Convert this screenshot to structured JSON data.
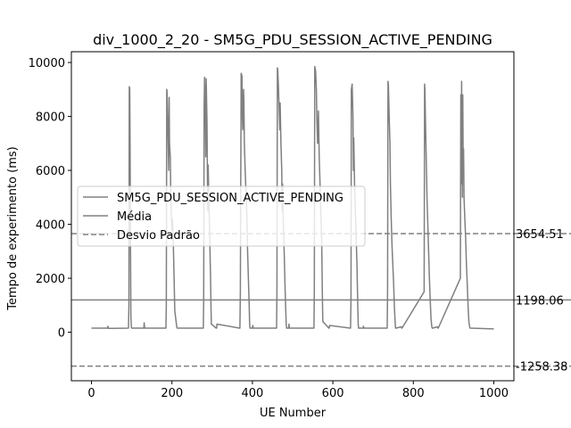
{
  "chart_data": {
    "type": "line",
    "title": "div_1000_2_20 - SM5G_PDU_SESSION_ACTIVE_PENDING",
    "xlabel": "UE Number",
    "ylabel": "Tempo de experimento (ms)",
    "xlim": [
      -50,
      1050
    ],
    "ylim": [
      -1800,
      10400
    ],
    "xticks": [
      0,
      200,
      400,
      600,
      800,
      1000
    ],
    "yticks": [
      0,
      2000,
      4000,
      6000,
      8000,
      10000
    ],
    "legend_position": "center-left",
    "grid": false,
    "series": [
      {
        "name": "SM5G_PDU_SESSION_ACTIVE_PENDING",
        "color": "#808080",
        "style": "solid",
        "x": [
          0,
          40,
          41,
          42,
          92,
          93,
          94,
          95,
          96,
          97,
          98,
          99,
          100,
          101,
          102,
          130,
          131,
          132,
          185,
          186,
          187,
          188,
          190,
          192,
          193,
          194,
          196,
          197,
          198,
          200,
          201,
          203,
          205,
          207,
          212,
          213,
          214,
          278,
          279,
          280,
          281,
          283,
          284,
          285,
          287,
          288,
          289,
          290,
          292,
          294,
          296,
          297,
          298,
          310,
          311,
          312,
          368,
          369,
          370,
          372,
          374,
          375,
          376,
          378,
          379,
          380,
          382,
          384,
          386,
          388,
          390,
          392,
          393,
          394,
          400,
          401,
          402,
          460,
          461,
          462,
          463,
          465,
          467,
          468,
          469,
          471,
          473,
          474,
          475,
          477,
          479,
          481,
          483,
          484,
          485,
          490,
          491,
          492,
          553,
          554,
          555,
          557,
          559,
          560,
          562,
          564,
          566,
          568,
          570,
          572,
          573,
          574,
          575,
          590,
          591,
          592,
          643,
          644,
          645,
          646,
          648,
          650,
          651,
          652,
          654,
          656,
          658,
          660,
          662,
          663,
          664,
          675,
          676,
          677,
          735,
          736,
          737,
          738,
          740,
          742,
          743,
          745,
          747,
          749,
          751,
          753,
          755,
          756,
          757,
          770,
          771,
          772,
          827,
          828,
          829,
          830,
          832,
          834,
          836,
          838,
          840,
          842,
          844,
          846,
          847,
          848,
          860,
          861,
          862,
          917,
          918,
          919,
          920,
          921,
          922,
          923,
          924,
          925,
          926,
          928,
          930,
          932,
          934,
          936,
          938,
          940,
          941,
          942,
          1000
        ],
        "y": [
          150,
          150,
          220,
          140,
          150,
          1000,
          9100,
          9050,
          7000,
          3000,
          600,
          200,
          150,
          150,
          150,
          150,
          350,
          150,
          150,
          1000,
          9000,
          8900,
          7500,
          6000,
          8700,
          7000,
          6500,
          5200,
          4500,
          3800,
          4200,
          3500,
          2200,
          800,
          200,
          150,
          150,
          150,
          1200,
          8400,
          9450,
          8000,
          6500,
          9400,
          7800,
          6000,
          4500,
          6200,
          4800,
          3500,
          2000,
          900,
          300,
          150,
          150,
          300,
          150,
          150,
          1500,
          9600,
          9500,
          8000,
          7500,
          9000,
          8500,
          7000,
          6000,
          5200,
          4400,
          3000,
          2000,
          1000,
          300,
          150,
          150,
          250,
          150,
          150,
          1500,
          9800,
          9750,
          9000,
          8000,
          7500,
          8500,
          7000,
          6000,
          4500,
          5500,
          4000,
          3000,
          1800,
          800,
          300,
          150,
          150,
          300,
          150,
          150,
          1500,
          9850,
          9700,
          9000,
          8000,
          7000,
          8200,
          6500,
          5500,
          4500,
          3500,
          2500,
          1200,
          400,
          150,
          150,
          250,
          150,
          150,
          1200,
          9000,
          9200,
          8000,
          6000,
          7200,
          5500,
          4500,
          3500,
          2500,
          1000,
          300,
          150,
          150,
          220,
          150,
          150,
          1500,
          9300,
          9200,
          8000,
          7000,
          5500,
          4200,
          3200,
          2500,
          1800,
          900,
          300,
          150,
          150,
          200,
          150,
          150,
          1500,
          9200,
          9000,
          8000,
          6500,
          5000,
          4000,
          3000,
          2000,
          1200,
          500,
          200,
          150,
          150,
          200,
          150,
          150,
          2000,
          8800,
          5500,
          9300,
          7000,
          5000,
          8800,
          6000,
          6800,
          5000,
          4200,
          3500,
          2500,
          1800,
          1000,
          400,
          200,
          150,
          150,
          120
        ]
      },
      {
        "name": "Média",
        "color": "#808080",
        "style": "solid",
        "value": 1198.06
      },
      {
        "name": "Desvio Padrão",
        "color": "#808080",
        "style": "dashed",
        "values": [
          3654.51,
          -1258.38
        ]
      }
    ],
    "annotations": [
      "3654.51",
      "1198.06",
      "-1258.38"
    ]
  }
}
